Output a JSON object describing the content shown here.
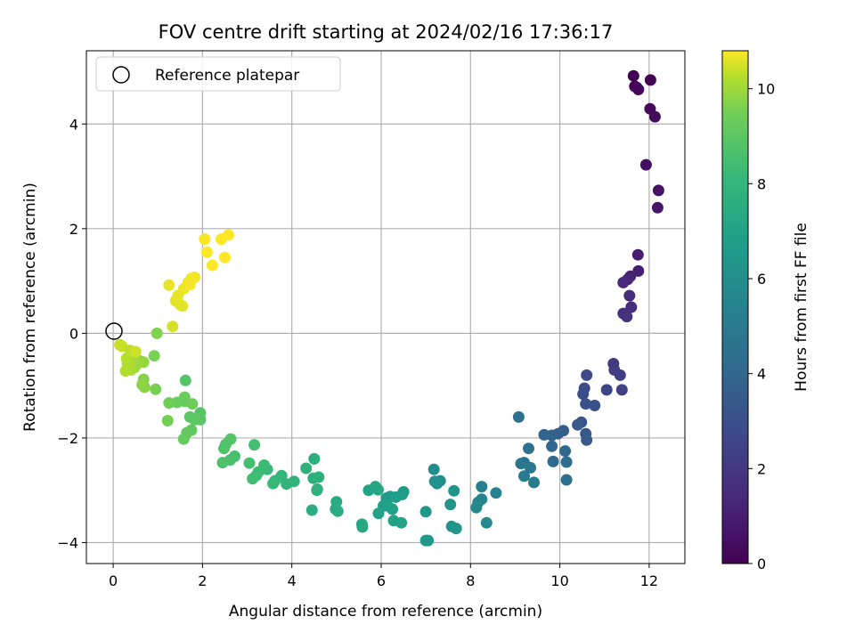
{
  "chart_data": {
    "type": "scatter",
    "title": "FOV centre drift starting at 2024/02/16 17:36:17",
    "xlabel": "Angular distance from reference (arcmin)",
    "ylabel": "Rotation from reference (arcmin)",
    "xlim": [
      -0.6,
      12.8
    ],
    "ylim": [
      -4.4,
      5.4
    ],
    "xticks": [
      "0",
      "2",
      "4",
      "6",
      "8",
      "10",
      "12"
    ],
    "yticks": [
      "−4",
      "−2",
      "0",
      "2",
      "4"
    ],
    "grid": true,
    "legend": {
      "placement": "upper-left",
      "entries": [
        "Reference platepar"
      ]
    },
    "reference_point": {
      "x": 0,
      "y": 0,
      "label": "Reference platepar"
    },
    "colorbar": {
      "label": "Hours from first FF file",
      "colormap": "viridis",
      "range": [
        0,
        10.8
      ],
      "ticks": [
        "0",
        "2",
        "4",
        "6",
        "8",
        "10"
      ]
    },
    "points": [
      [
        11.65,
        4.92,
        0.0
      ],
      [
        12.03,
        4.84,
        0.05
      ],
      [
        11.68,
        4.72,
        0.1
      ],
      [
        11.76,
        4.66,
        0.15
      ],
      [
        11.72,
        4.7,
        0.2
      ],
      [
        12.02,
        4.29,
        0.3
      ],
      [
        12.13,
        4.14,
        0.35
      ],
      [
        11.93,
        3.22,
        0.5
      ],
      [
        12.21,
        2.73,
        0.6
      ],
      [
        12.19,
        2.4,
        0.7
      ],
      [
        11.75,
        1.5,
        1.0
      ],
      [
        11.76,
        1.19,
        1.1
      ],
      [
        11.58,
        1.09,
        1.2
      ],
      [
        11.52,
        1.03,
        1.3
      ],
      [
        11.42,
        0.97,
        1.4
      ],
      [
        11.56,
        0.72,
        1.5
      ],
      [
        11.6,
        0.5,
        1.6
      ],
      [
        11.42,
        0.38,
        1.7
      ],
      [
        11.5,
        0.32,
        1.8
      ],
      [
        11.2,
        -0.58,
        2.1
      ],
      [
        11.22,
        -0.7,
        2.2
      ],
      [
        11.35,
        -0.8,
        2.3
      ],
      [
        11.39,
        -1.08,
        2.4
      ],
      [
        11.05,
        -1.08,
        2.5
      ],
      [
        10.6,
        -0.8,
        2.7
      ],
      [
        10.55,
        -1.05,
        2.8
      ],
      [
        10.52,
        -1.16,
        2.9
      ],
      [
        10.58,
        -1.35,
        3.0
      ],
      [
        10.78,
        -1.38,
        3.1
      ],
      [
        10.48,
        -1.7,
        3.2
      ],
      [
        10.58,
        -1.92,
        3.3
      ],
      [
        10.6,
        -2.04,
        3.4
      ],
      [
        10.4,
        -1.75,
        3.5
      ],
      [
        10.08,
        -1.86,
        3.6
      ],
      [
        9.96,
        -1.92,
        3.7
      ],
      [
        9.82,
        -1.95,
        3.8
      ],
      [
        9.65,
        -1.94,
        3.9
      ],
      [
        9.82,
        -2.16,
        4.0
      ],
      [
        10.12,
        -2.25,
        4.1
      ],
      [
        9.85,
        -2.45,
        4.2
      ],
      [
        10.15,
        -2.46,
        4.3
      ],
      [
        10.15,
        -2.8,
        4.4
      ],
      [
        9.08,
        -1.6,
        4.5
      ],
      [
        9.3,
        -2.2,
        4.6
      ],
      [
        9.2,
        -2.47,
        4.7
      ],
      [
        9.13,
        -2.49,
        4.8
      ],
      [
        9.34,
        -2.57,
        4.9
      ],
      [
        9.2,
        -2.73,
        5.0
      ],
      [
        9.42,
        -2.85,
        5.1
      ],
      [
        8.25,
        -2.93,
        5.3
      ],
      [
        8.57,
        -3.05,
        5.4
      ],
      [
        8.25,
        -3.17,
        5.5
      ],
      [
        8.17,
        -3.23,
        5.6
      ],
      [
        8.13,
        -3.33,
        5.7
      ],
      [
        8.36,
        -3.62,
        5.8
      ],
      [
        7.18,
        -2.6,
        5.9
      ],
      [
        7.32,
        -2.82,
        6.0
      ],
      [
        7.2,
        -2.83,
        6.05
      ],
      [
        7.25,
        -2.87,
        6.1
      ],
      [
        7.63,
        -3.01,
        6.2
      ],
      [
        7.55,
        -3.27,
        6.25
      ],
      [
        7.58,
        -3.69,
        6.3
      ],
      [
        7.68,
        -3.73,
        6.35
      ],
      [
        7.0,
        -3.41,
        6.4
      ],
      [
        7.0,
        -3.96,
        6.45
      ],
      [
        7.05,
        -3.96,
        6.5
      ],
      [
        6.12,
        -3.15,
        6.55
      ],
      [
        6.2,
        -3.12,
        6.6
      ],
      [
        6.5,
        -3.03,
        6.65
      ],
      [
        6.47,
        -3.08,
        6.7
      ],
      [
        6.33,
        -3.13,
        6.75
      ],
      [
        6.05,
        -3.3,
        6.8
      ],
      [
        6.15,
        -3.3,
        6.85
      ],
      [
        6.25,
        -3.36,
        6.9
      ],
      [
        5.94,
        -3.44,
        6.95
      ],
      [
        6.28,
        -3.58,
        7.0
      ],
      [
        6.45,
        -3.62,
        7.05
      ],
      [
        5.72,
        -3.0,
        7.1
      ],
      [
        5.87,
        -2.93,
        7.15
      ],
      [
        5.93,
        -2.99,
        7.2
      ],
      [
        5.57,
        -3.65,
        7.25
      ],
      [
        5.58,
        -3.7,
        7.3
      ],
      [
        5.0,
        -3.22,
        7.4
      ],
      [
        4.98,
        -3.36,
        7.45
      ],
      [
        5.03,
        -3.4,
        7.5
      ],
      [
        4.45,
        -3.38,
        7.55
      ],
      [
        4.5,
        -2.4,
        7.6
      ],
      [
        4.6,
        -2.75,
        7.65
      ],
      [
        4.48,
        -2.77,
        7.7
      ],
      [
        4.57,
        -2.98,
        7.75
      ],
      [
        4.56,
        -3.0,
        7.8
      ],
      [
        4.32,
        -2.58,
        7.85
      ],
      [
        4.05,
        -2.83,
        7.9
      ],
      [
        3.88,
        -2.88,
        7.95
      ],
      [
        3.77,
        -2.72,
        8.0
      ],
      [
        3.75,
        -2.75,
        8.05
      ],
      [
        3.62,
        -2.82,
        8.1
      ],
      [
        3.58,
        -2.87,
        8.15
      ],
      [
        3.45,
        -2.6,
        8.2
      ],
      [
        3.38,
        -2.52,
        8.25
      ],
      [
        3.25,
        -2.65,
        8.3
      ],
      [
        3.2,
        -2.72,
        8.35
      ],
      [
        3.12,
        -2.78,
        8.4
      ],
      [
        3.16,
        -2.13,
        8.45
      ],
      [
        3.05,
        -2.48,
        8.5
      ],
      [
        2.72,
        -2.35,
        8.55
      ],
      [
        2.62,
        -2.42,
        8.6
      ],
      [
        2.45,
        -2.47,
        8.65
      ],
      [
        2.52,
        -2.12,
        8.7
      ],
      [
        2.48,
        -2.2,
        8.75
      ],
      [
        2.63,
        -2.02,
        8.8
      ],
      [
        1.62,
        -0.9,
        8.85
      ],
      [
        1.95,
        -1.52,
        8.9
      ],
      [
        1.95,
        -1.65,
        8.95
      ],
      [
        1.72,
        -1.6,
        9.0
      ],
      [
        1.82,
        -1.65,
        9.05
      ],
      [
        1.75,
        -1.85,
        9.1
      ],
      [
        1.65,
        -1.9,
        9.15
      ],
      [
        1.58,
        -2.02,
        9.2
      ],
      [
        1.6,
        -1.3,
        9.25
      ],
      [
        1.6,
        -1.22,
        9.3
      ],
      [
        1.43,
        -1.32,
        9.35
      ],
      [
        1.77,
        -1.35,
        9.4
      ],
      [
        1.25,
        -1.33,
        9.45
      ],
      [
        1.22,
        -1.67,
        9.5
      ],
      [
        0.95,
        -1.07,
        9.55
      ],
      [
        0.92,
        -0.43,
        9.6
      ],
      [
        0.98,
        0.0,
        9.65
      ],
      [
        0.68,
        -0.88,
        9.7
      ],
      [
        0.7,
        -1.03,
        9.75
      ],
      [
        0.65,
        -0.98,
        9.8
      ],
      [
        0.6,
        -0.53,
        9.85
      ],
      [
        0.68,
        -0.55,
        9.9
      ],
      [
        0.52,
        -0.6,
        9.95
      ],
      [
        0.48,
        -0.65,
        10.0
      ],
      [
        0.45,
        -0.5,
        10.05
      ],
      [
        0.4,
        -0.7,
        10.1
      ],
      [
        0.32,
        -0.58,
        10.15
      ],
      [
        0.28,
        -0.72,
        10.2
      ],
      [
        0.3,
        -0.48,
        10.25
      ],
      [
        0.38,
        -0.33,
        10.3
      ],
      [
        0.2,
        -0.25,
        10.35
      ],
      [
        0.15,
        -0.22,
        10.4
      ],
      [
        0.5,
        -0.35,
        10.45
      ],
      [
        1.33,
        0.13,
        10.5
      ],
      [
        1.5,
        0.55,
        10.55
      ],
      [
        1.55,
        0.52,
        10.58
      ],
      [
        1.4,
        0.62,
        10.6
      ],
      [
        1.45,
        0.72,
        10.62
      ],
      [
        1.25,
        0.92,
        10.64
      ],
      [
        1.58,
        0.85,
        10.66
      ],
      [
        1.68,
        0.97,
        10.68
      ],
      [
        1.75,
        1.05,
        10.7
      ],
      [
        1.82,
        1.07,
        10.72
      ],
      [
        1.72,
        0.93,
        10.74
      ],
      [
        2.05,
        1.8,
        10.76
      ],
      [
        2.1,
        1.55,
        10.78
      ],
      [
        2.22,
        1.3,
        10.8
      ],
      [
        2.42,
        1.8,
        10.8
      ],
      [
        2.5,
        1.45,
        10.8
      ],
      [
        2.58,
        1.88,
        10.8
      ]
    ]
  }
}
